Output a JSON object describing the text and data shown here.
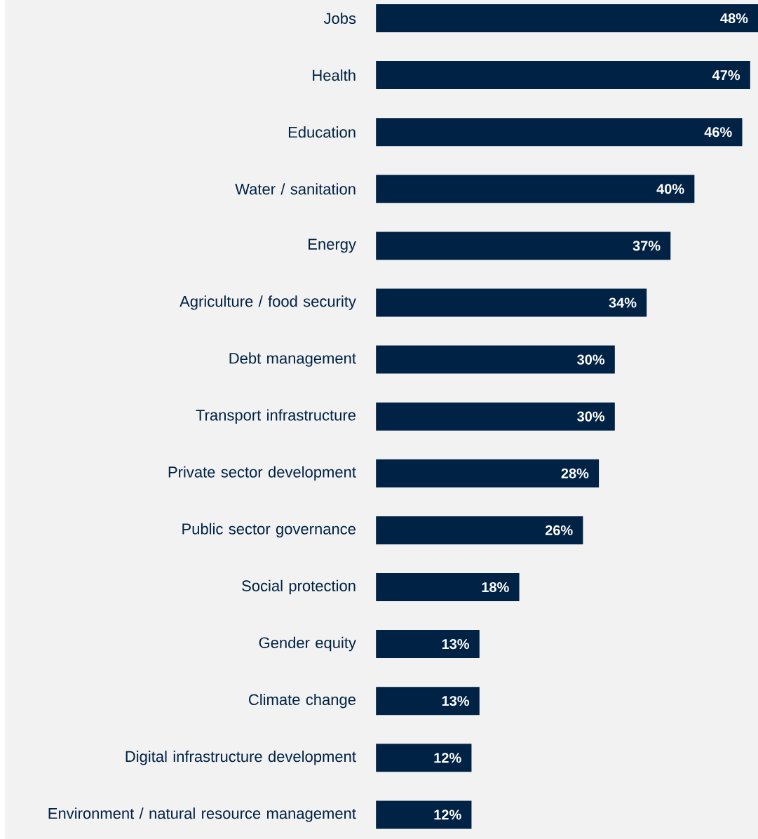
{
  "chart_data": {
    "type": "bar",
    "orientation": "horizontal",
    "data_labels": true,
    "color": "#002244",
    "categories": [
      "Jobs",
      "Health",
      "Education",
      "Water / sanitation",
      "Energy",
      "Agriculture / food security",
      "Debt management",
      "Transport infrastructure",
      "Private sector development",
      "Public sector governance",
      "Social protection",
      "Gender equity",
      "Climate change",
      "Digital infrastructure development",
      "Environment / natural resource management"
    ],
    "values": [
      48,
      47,
      46,
      40,
      37,
      34,
      30,
      30,
      28,
      26,
      18,
      13,
      13,
      12,
      12
    ],
    "value_labels": [
      "48%",
      "47%",
      "46%",
      "40%",
      "37%",
      "34%",
      "30%",
      "30%",
      "28%",
      "26%",
      "18%",
      "13%",
      "13%",
      "12%",
      "12%"
    ]
  }
}
